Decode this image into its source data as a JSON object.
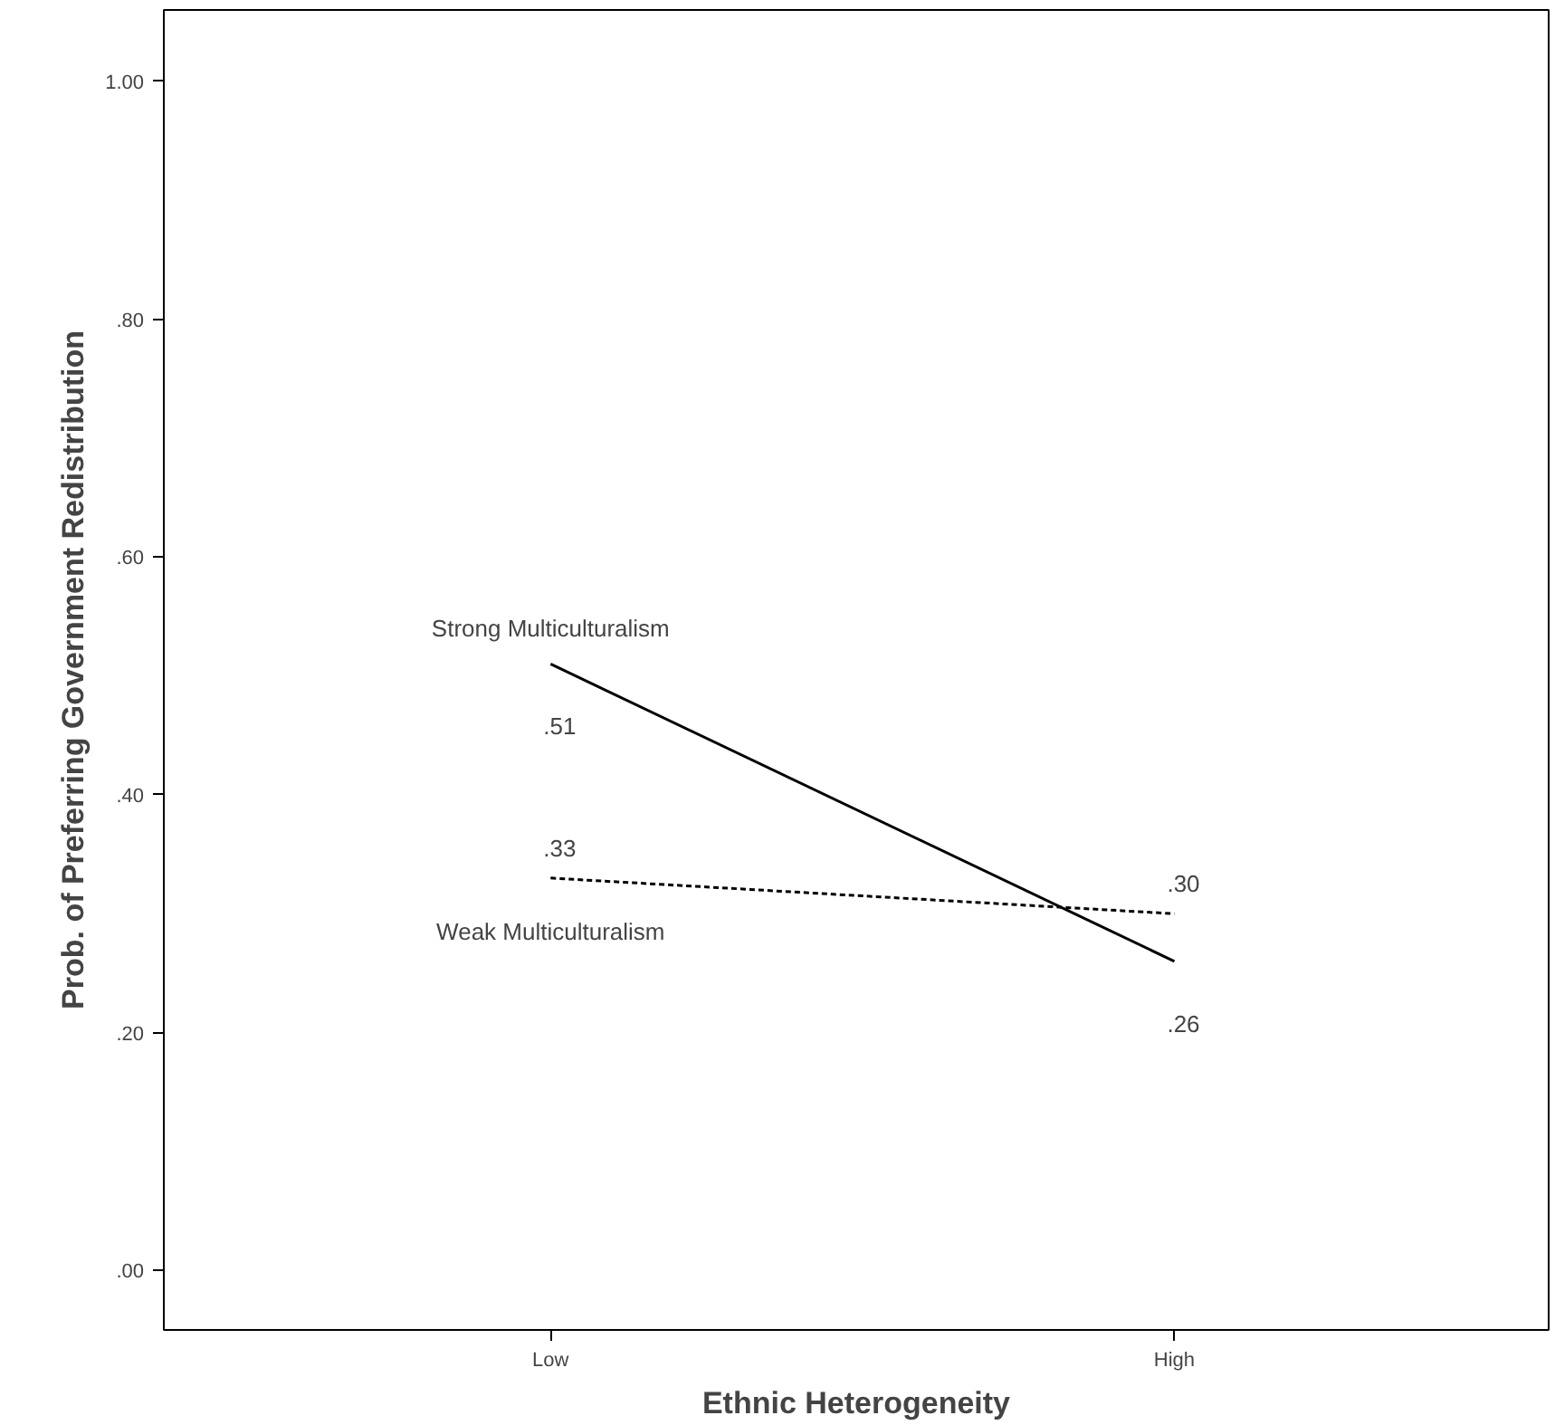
{
  "chart_data": {
    "type": "line",
    "xlabel": "Ethnic Heterogeneity",
    "ylabel": "Prob. of Preferring Government Redistribution",
    "categories": [
      "Low",
      "High"
    ],
    "series": [
      {
        "name": "Strong Multiculturalism",
        "color": "#000000",
        "values": [
          0.51,
          0.26
        ],
        "value_labels": [
          ".51",
          ".26"
        ],
        "line_style": "solid"
      },
      {
        "name": "Weak Multiculturalism",
        "color": "#000000",
        "values": [
          0.33,
          0.3
        ],
        "value_labels": [
          ".33",
          ".30"
        ],
        "line_style": "dashed"
      }
    ],
    "ylim": [
      -0.05,
      1.06
    ],
    "yticks": [
      {
        "value": 0,
        "label": ".00"
      },
      {
        "value": 0.2,
        "label": ".20"
      },
      {
        "value": 0.4,
        "label": ".40"
      },
      {
        "value": 0.6,
        "label": ".60"
      },
      {
        "value": 0.8,
        "label": ".80"
      },
      {
        "value": 1.0,
        "label": "1.00"
      }
    ],
    "grid": false,
    "marker": "none"
  }
}
